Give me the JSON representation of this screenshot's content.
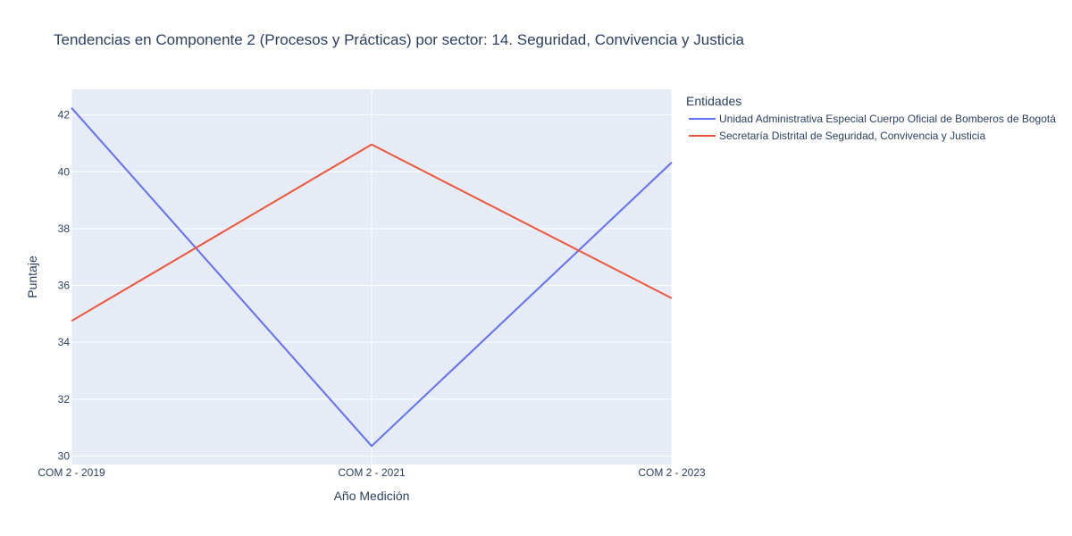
{
  "chart_data": {
    "type": "line",
    "title": "Tendencias en Componente 2 (Procesos y Prácticas) por sector: 14. Seguridad, Convivencia y Justicia",
    "xlabel": "Año Medición",
    "ylabel": "Puntaje",
    "categories": [
      "COM 2 - 2019",
      "COM 2 - 2021",
      "COM 2 - 2023"
    ],
    "ylim": [
      29.7,
      42.9
    ],
    "yticks": [
      30,
      32,
      34,
      36,
      38,
      40,
      42
    ],
    "grid": true,
    "legend_title": "Entidades",
    "legend_position": "right",
    "plot_background": "#e5ecf6",
    "series": [
      {
        "name": "Unidad Administrativa Especial Cuerpo Oficial de Bomberos de Bogotá",
        "color": "#636efa",
        "values": [
          42.25,
          30.35,
          40.33
        ]
      },
      {
        "name": "Secretaría Distrital de Seguridad, Convivencia y Justicia",
        "color": "#ef553b",
        "values": [
          34.75,
          40.96,
          35.55
        ]
      }
    ]
  }
}
